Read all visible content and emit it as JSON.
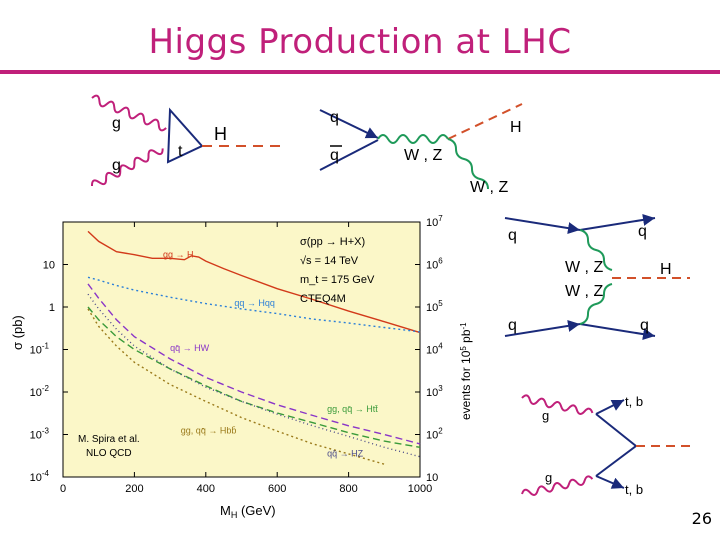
{
  "slide": {
    "title": "Higgs Production at LHC",
    "page_number": "26",
    "accent_color": "#c0207a"
  },
  "diagrams": {
    "gluon_fusion": {
      "g_top": "g",
      "g_bottom": "g",
      "loop": "t",
      "higgs": "H"
    },
    "higgsstrahlung": {
      "q_top": "q",
      "q_bottom": "q",
      "boson": "W , Z",
      "higgs": "H",
      "boson_out": "W , Z"
    },
    "vbf": {
      "q_in_top": "q",
      "q_out_top": "q",
      "boson_top": "W , Z",
      "boson_bottom": "W , Z",
      "higgs": "H",
      "q_in_bottom": "q",
      "q_out_bottom": "q"
    },
    "tth": {
      "g_top": "g",
      "g_bottom": "g",
      "out_top": "t, b",
      "out_bottom": "t, b"
    }
  },
  "chart_data": {
    "type": "line",
    "xlabel": "M_H (GeV)",
    "ylabel": "σ (pb)",
    "y2label": "events for 10^5 pb^-1",
    "xlim": [
      0,
      1000
    ],
    "ylim": [
      0.0001,
      100
    ],
    "yscale": "log",
    "x_ticks": [
      "0",
      "200",
      "400",
      "600",
      "800",
      "1000"
    ],
    "y_ticks": [
      {
        "exp": null,
        "text": "10"
      },
      {
        "exp": null,
        "text": "1"
      },
      {
        "exp": "-1",
        "text": "10"
      },
      {
        "exp": "-2",
        "text": "10"
      },
      {
        "exp": "-3",
        "text": "10"
      },
      {
        "exp": "-4",
        "text": "10"
      }
    ],
    "y2_ticks": [
      {
        "exp": "7",
        "text": "10"
      },
      {
        "exp": "6",
        "text": "10"
      },
      {
        "exp": "5",
        "text": "10"
      },
      {
        "exp": "4",
        "text": "10"
      },
      {
        "exp": "3",
        "text": "10"
      },
      {
        "exp": "2",
        "text": "10"
      },
      {
        "exp": null,
        "text": "10"
      }
    ],
    "annotations": {
      "process": "σ(pp → H+X)",
      "energy": "√s = 14 TeV",
      "mass": "m_t = 175 GeV",
      "pdf": "CTEQ4M",
      "credit1": "M. Spira et al.",
      "credit2": "NLO QCD"
    },
    "background": "#fbf7c8",
    "series": [
      {
        "name": "gg → H",
        "color": "#d23a1a",
        "dash": "",
        "x": [
          70,
          100,
          150,
          200,
          250,
          300,
          340,
          360,
          380,
          400,
          450,
          500,
          600,
          700,
          800,
          900,
          1000
        ],
        "y": [
          60,
          35,
          20,
          17,
          14,
          14,
          13,
          16,
          15,
          12,
          8,
          5.5,
          2.7,
          1.5,
          0.8,
          0.45,
          0.25
        ]
      },
      {
        "name": "qq → Hqq",
        "color": "#2b7fd8",
        "dash": "2,3",
        "x": [
          70,
          100,
          150,
          200,
          300,
          400,
          500,
          600,
          700,
          800,
          900,
          1000
        ],
        "y": [
          5,
          4.3,
          3.2,
          2.5,
          1.7,
          1.2,
          0.9,
          0.7,
          0.52,
          0.42,
          0.33,
          0.26
        ]
      },
      {
        "name": "qq̄ → HW",
        "color": "#8a35c8",
        "dash": "7,4",
        "x": [
          70,
          100,
          150,
          200,
          300,
          400,
          500,
          600,
          700,
          800,
          900,
          1000
        ],
        "y": [
          3.5,
          1.6,
          0.5,
          0.2,
          0.06,
          0.022,
          0.01,
          0.005,
          0.0028,
          0.0016,
          0.001,
          0.0006
        ]
      },
      {
        "name": "gg, qq̄ → Htt̄",
        "color": "#3a9a3a",
        "dash": "7,4",
        "x": [
          70,
          100,
          150,
          200,
          300,
          400,
          500,
          600,
          700,
          800,
          900,
          1000
        ],
        "y": [
          1.0,
          0.5,
          0.2,
          0.1,
          0.035,
          0.014,
          0.006,
          0.0032,
          0.0019,
          0.0011,
          0.0007,
          0.0005
        ]
      },
      {
        "name": "gg, qq̄ → Hbb̄",
        "color": "#9a7a1a",
        "dash": "2,3",
        "x": [
          70,
          100,
          150,
          200,
          300,
          400,
          500,
          600,
          700,
          800,
          900
        ],
        "y": [
          0.9,
          0.35,
          0.12,
          0.05,
          0.015,
          0.006,
          0.0025,
          0.0012,
          0.0006,
          0.00035,
          0.0002
        ]
      },
      {
        "name": "qq̄ → HZ",
        "color": "#4a4a8a",
        "dash": "1,3",
        "x": [
          70,
          100,
          150,
          200,
          300,
          400,
          500,
          600,
          700,
          800,
          900,
          1000
        ],
        "y": [
          2.0,
          0.9,
          0.3,
          0.12,
          0.035,
          0.013,
          0.006,
          0.003,
          0.0016,
          0.0009,
          0.0005,
          0.0003
        ]
      }
    ]
  }
}
